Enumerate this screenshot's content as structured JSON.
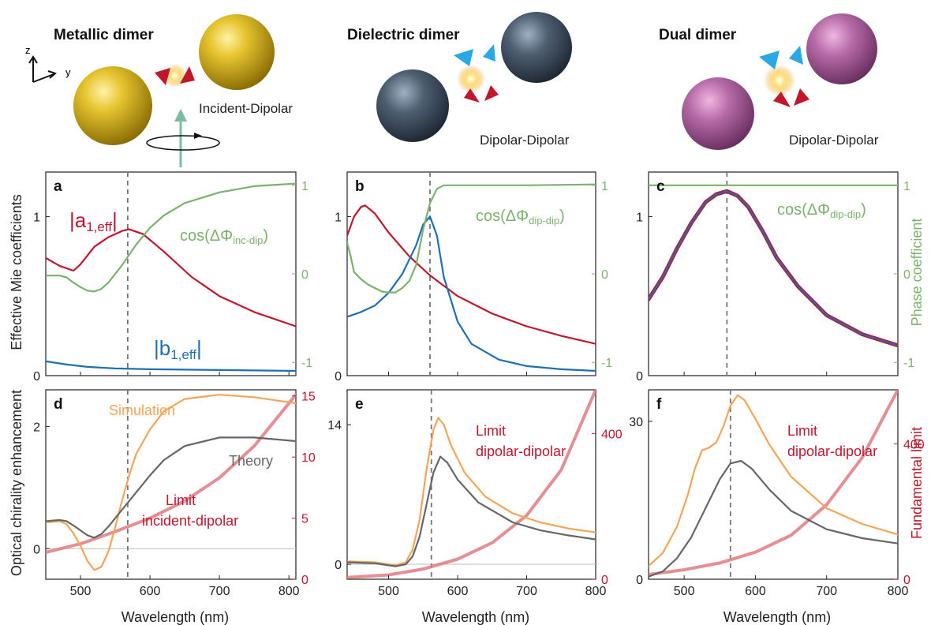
{
  "figure": {
    "top": [
      {
        "title": "Metallic dimer",
        "subtitle": "Incident-Dipolar",
        "sphere_color": "#d4b21c"
      },
      {
        "title": "Dielectric dimer",
        "subtitle": "Dipolar-Dipolar",
        "sphere_color": "#4a5a6c"
      },
      {
        "title": "Dual dimer",
        "subtitle": "Dipolar-Dipolar",
        "sphere_color": "#b56ba6"
      }
    ],
    "axes_glyph": {
      "z": "z",
      "y": "y"
    },
    "xlabel": "Wavelength (nm)",
    "ylabel_top": "Effective Mie coefficients",
    "ylabel_top_right": "Phase  coefficient",
    "ylabel_bottom": "Optical chirality enhancement",
    "ylabel_bottom_right": "Fundamental limit",
    "colors": {
      "a": "#c0172c",
      "b": "#1f6fb5",
      "phase": "#7bb26c",
      "sim": "#f5a557",
      "theory": "#666666",
      "limit": "#e07a80",
      "dash": "#777777"
    }
  },
  "chart_data": [
    {
      "panel": "a",
      "type": "line",
      "xlim": [
        450,
        810
      ],
      "ylim": [
        0,
        1.28
      ],
      "y2lim": [
        -1.15,
        1.15
      ],
      "xticks": [
        500,
        600,
        700,
        800
      ],
      "yticks": [
        0,
        1
      ],
      "y2ticks": [
        -1,
        0,
        1
      ],
      "vline": 568,
      "labels": [
        {
          "main": "|a",
          "sub": "1,eff",
          "tail": "|",
          "color": "a"
        },
        {
          "main": "|b",
          "sub": "1,eff",
          "tail": "|",
          "color": "b"
        },
        {
          "main": "cos(ΔΦ",
          "sub": "inc-dip",
          "tail": ")",
          "color": "phase"
        }
      ],
      "series": [
        {
          "key": "a",
          "axis": "left",
          "x": [
            450,
            470,
            490,
            500,
            520,
            540,
            560,
            570,
            590,
            620,
            660,
            700,
            750,
            810
          ],
          "y": [
            0.74,
            0.69,
            0.66,
            0.7,
            0.81,
            0.87,
            0.91,
            0.92,
            0.89,
            0.78,
            0.62,
            0.5,
            0.4,
            0.31
          ]
        },
        {
          "key": "b",
          "axis": "left",
          "x": [
            450,
            480,
            510,
            550,
            600,
            700,
            810
          ],
          "y": [
            0.09,
            0.07,
            0.055,
            0.045,
            0.04,
            0.035,
            0.03
          ]
        },
        {
          "key": "phase",
          "axis": "right",
          "x": [
            450,
            470,
            480,
            490,
            500,
            510,
            520,
            530,
            540,
            560,
            580,
            600,
            620,
            650,
            700,
            750,
            810
          ],
          "y": [
            -0.02,
            -0.02,
            -0.04,
            -0.1,
            -0.15,
            -0.19,
            -0.2,
            -0.17,
            -0.1,
            0.1,
            0.33,
            0.52,
            0.66,
            0.8,
            0.92,
            0.99,
            1.02
          ]
        }
      ]
    },
    {
      "panel": "b",
      "type": "line",
      "xlim": [
        440,
        800
      ],
      "ylim": [
        0,
        1.28
      ],
      "y2lim": [
        -1.15,
        1.15
      ],
      "xticks": [
        500,
        600,
        700,
        800
      ],
      "yticks": [
        0,
        1
      ],
      "y2ticks": [
        -1,
        0,
        1
      ],
      "vline": 560,
      "labels": [
        {
          "main": "cos(ΔΦ",
          "sub": "dip-dip",
          "tail": ")",
          "color": "phase"
        }
      ],
      "series": [
        {
          "key": "a",
          "axis": "left",
          "x": [
            440,
            450,
            460,
            466,
            480,
            500,
            530,
            560,
            600,
            650,
            700,
            750,
            800
          ],
          "y": [
            0.88,
            1.0,
            1.06,
            1.07,
            1.02,
            0.9,
            0.75,
            0.63,
            0.5,
            0.39,
            0.31,
            0.25,
            0.2
          ]
        },
        {
          "key": "b",
          "axis": "left",
          "x": [
            440,
            460,
            480,
            500,
            520,
            540,
            550,
            560,
            570,
            580,
            600,
            620,
            660,
            700,
            750,
            800
          ],
          "y": [
            0.37,
            0.4,
            0.44,
            0.52,
            0.64,
            0.82,
            0.95,
            1.0,
            0.88,
            0.62,
            0.34,
            0.2,
            0.1,
            0.06,
            0.04,
            0.03
          ]
        },
        {
          "key": "phase",
          "axis": "right",
          "x": [
            440,
            445,
            450,
            460,
            470,
            480,
            490,
            500,
            510,
            520,
            530,
            540,
            550,
            560,
            570,
            580,
            600,
            650,
            700,
            800
          ],
          "y": [
            0.35,
            0.2,
            0.02,
            -0.06,
            -0.12,
            -0.16,
            -0.2,
            -0.21,
            -0.21,
            -0.16,
            -0.08,
            0.1,
            0.5,
            0.8,
            0.96,
            1.0,
            1.0,
            1.0,
            1.0,
            1.01
          ]
        }
      ]
    },
    {
      "panel": "c",
      "type": "line",
      "xlim": [
        450,
        800
      ],
      "ylim": [
        0,
        1.28
      ],
      "y2lim": [
        -1.15,
        1.15
      ],
      "xticks": [
        500,
        600,
        700,
        800
      ],
      "yticks": [
        0,
        1
      ],
      "y2ticks": [
        -1,
        0,
        1
      ],
      "vline": 560,
      "labels": [
        {
          "main": "cos(ΔΦ",
          "sub": "dip-dip",
          "tail": ")",
          "color": "phase"
        }
      ],
      "series": [
        {
          "key": "phase",
          "axis": "right",
          "x": [
            450,
            800
          ],
          "y": [
            1.0,
            1.0
          ]
        },
        {
          "key": "a",
          "axis": "left",
          "x": [
            450,
            470,
            490,
            510,
            530,
            545,
            560,
            575,
            590,
            610,
            630,
            660,
            700,
            750,
            800
          ],
          "y": [
            0.48,
            0.62,
            0.8,
            0.96,
            1.09,
            1.14,
            1.16,
            1.13,
            1.06,
            0.91,
            0.74,
            0.56,
            0.38,
            0.26,
            0.19
          ]
        },
        {
          "key": "b",
          "axis": "left",
          "x": [
            450,
            470,
            490,
            510,
            530,
            545,
            560,
            575,
            590,
            610,
            630,
            660,
            700,
            750,
            800
          ],
          "y": [
            0.48,
            0.62,
            0.8,
            0.96,
            1.09,
            1.14,
            1.16,
            1.13,
            1.06,
            0.91,
            0.74,
            0.56,
            0.38,
            0.26,
            0.19
          ]
        }
      ]
    },
    {
      "panel": "d",
      "type": "line",
      "xlim": [
        450,
        810
      ],
      "ylim": [
        -0.5,
        2.6
      ],
      "y2lim": [
        0,
        15.5
      ],
      "xticks": [
        500,
        600,
        700,
        800
      ],
      "yticks": [
        0,
        2
      ],
      "y2ticks": [
        0,
        5,
        10,
        15
      ],
      "vline": 568,
      "hline": 0,
      "labels": [
        {
          "main": "Simulation",
          "color": "sim"
        },
        {
          "main": "Theory",
          "color": "theory"
        },
        {
          "main": "Limit",
          "color": "a"
        },
        {
          "main": "incident-dipolar",
          "color": "a"
        }
      ],
      "series": [
        {
          "key": "limit",
          "axis": "right",
          "x": [
            450,
            500,
            550,
            600,
            650,
            700,
            750,
            810
          ],
          "y": [
            2.2,
            2.9,
            3.9,
            5.0,
            6.4,
            8.3,
            10.9,
            15.1
          ]
        },
        {
          "key": "sim",
          "axis": "left",
          "x": [
            450,
            470,
            480,
            490,
            500,
            510,
            520,
            530,
            540,
            550,
            560,
            570,
            580,
            600,
            620,
            650,
            700,
            750,
            810
          ],
          "y": [
            0.43,
            0.45,
            0.4,
            0.25,
            0.05,
            -0.2,
            -0.35,
            -0.3,
            -0.05,
            0.35,
            0.8,
            1.2,
            1.55,
            1.95,
            2.25,
            2.45,
            2.52,
            2.48,
            2.38
          ]
        },
        {
          "key": "theory",
          "axis": "left",
          "x": [
            450,
            470,
            480,
            490,
            500,
            510,
            520,
            530,
            540,
            560,
            580,
            600,
            620,
            650,
            700,
            750,
            810
          ],
          "y": [
            0.45,
            0.47,
            0.45,
            0.38,
            0.3,
            0.22,
            0.18,
            0.24,
            0.36,
            0.64,
            0.92,
            1.2,
            1.45,
            1.68,
            1.82,
            1.82,
            1.76
          ]
        }
      ]
    },
    {
      "panel": "e",
      "type": "line",
      "xlim": [
        440,
        800
      ],
      "ylim": [
        -1.5,
        17.5
      ],
      "y2lim": [
        0,
        520
      ],
      "xticks": [
        500,
        600,
        700,
        800
      ],
      "yticks": [
        0,
        14
      ],
      "y2ticks": [
        0,
        400
      ],
      "vline": 562,
      "hline": 0,
      "labels": [
        {
          "main": "Limit",
          "color": "a"
        },
        {
          "main": "dipolar-dipolar",
          "color": "a"
        }
      ],
      "series": [
        {
          "key": "limit",
          "axis": "right",
          "x": [
            440,
            500,
            550,
            600,
            650,
            700,
            750,
            800
          ],
          "y": [
            5,
            12,
            28,
            55,
            100,
            175,
            300,
            520
          ]
        },
        {
          "key": "sim",
          "axis": "left",
          "x": [
            440,
            480,
            510,
            525,
            535,
            545,
            555,
            565,
            572,
            580,
            590,
            610,
            640,
            680,
            720,
            760,
            800
          ],
          "y": [
            0.3,
            0.2,
            -0.1,
            0.2,
            1.5,
            4.5,
            9.5,
            13.5,
            14.7,
            14.0,
            12.0,
            9.2,
            6.8,
            5.1,
            4.2,
            3.6,
            3.2
          ]
        },
        {
          "key": "theory",
          "axis": "left",
          "x": [
            440,
            480,
            510,
            525,
            535,
            545,
            555,
            565,
            575,
            585,
            600,
            630,
            680,
            720,
            760,
            800
          ],
          "y": [
            0.2,
            0.1,
            -0.2,
            0.0,
            0.8,
            2.8,
            6.0,
            9.2,
            10.8,
            10.2,
            8.5,
            6.2,
            4.2,
            3.4,
            2.9,
            2.5
          ]
        }
      ]
    },
    {
      "panel": "f",
      "type": "line",
      "xlim": [
        450,
        800
      ],
      "ylim": [
        0,
        36
      ],
      "y2lim": [
        0,
        560
      ],
      "xticks": [
        500,
        600,
        700,
        800
      ],
      "yticks": [
        0,
        30
      ],
      "y2ticks": [
        0,
        400
      ],
      "vline": 565,
      "labels": [
        {
          "main": "Limit",
          "color": "a"
        },
        {
          "main": "dipolar-dipolar",
          "color": "a"
        }
      ],
      "series": [
        {
          "key": "limit",
          "axis": "right",
          "x": [
            450,
            500,
            550,
            600,
            650,
            700,
            750,
            800
          ],
          "y": [
            14,
            28,
            48,
            80,
            130,
            220,
            360,
            560
          ]
        },
        {
          "key": "sim",
          "axis": "left",
          "x": [
            450,
            470,
            490,
            505,
            515,
            525,
            535,
            545,
            555,
            565,
            575,
            585,
            600,
            620,
            650,
            700,
            750,
            800
          ],
          "y": [
            2.5,
            5.0,
            10.0,
            16.0,
            21.0,
            24.5,
            25.0,
            26.0,
            29.0,
            33.0,
            35.0,
            34.0,
            30.5,
            25.5,
            19.5,
            13.5,
            10.5,
            8.5
          ]
        },
        {
          "key": "theory",
          "axis": "left",
          "x": [
            450,
            470,
            490,
            510,
            530,
            550,
            565,
            580,
            595,
            620,
            650,
            700,
            750,
            800
          ],
          "y": [
            0.5,
            1.5,
            4.0,
            8.0,
            13.5,
            19.0,
            22.0,
            22.5,
            21.0,
            17.0,
            13.0,
            9.5,
            7.8,
            6.8
          ]
        }
      ]
    }
  ]
}
